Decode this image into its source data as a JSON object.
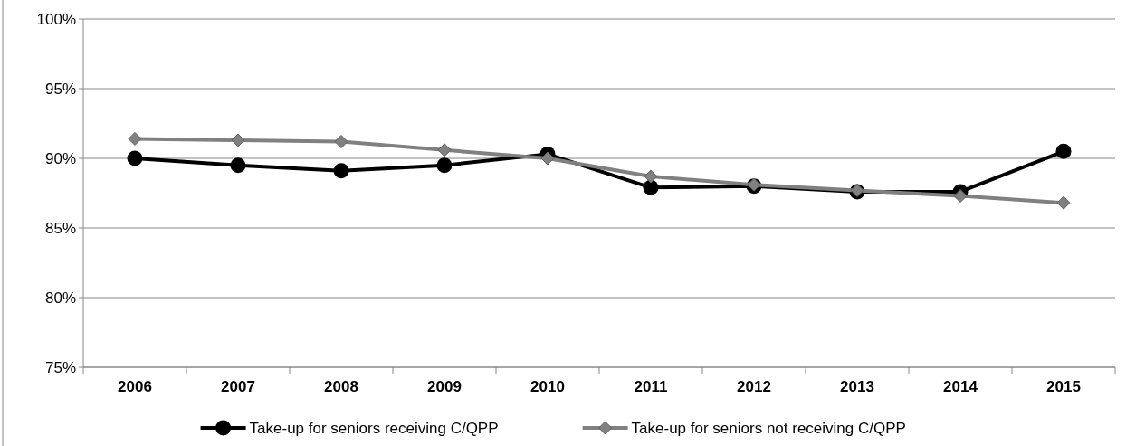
{
  "chart_data": {
    "type": "line",
    "categories": [
      "2006",
      "2007",
      "2008",
      "2009",
      "2010",
      "2011",
      "2012",
      "2013",
      "2014",
      "2015"
    ],
    "series": [
      {
        "name": "Take-up for seniors receiving C/QPP",
        "color": "#000000",
        "marker": "circle",
        "values": [
          90.0,
          89.5,
          89.1,
          89.5,
          90.3,
          87.9,
          88.0,
          87.6,
          87.6,
          90.5
        ]
      },
      {
        "name": "Take-up for seniors not receiving C/QPP",
        "color": "#808080",
        "marker": "diamond",
        "values": [
          91.4,
          91.3,
          91.2,
          90.6,
          90.0,
          88.7,
          88.1,
          87.7,
          87.3,
          86.8
        ]
      }
    ],
    "ylim": [
      75,
      100
    ],
    "yticks": [
      {
        "value": 75,
        "label": "75%"
      },
      {
        "value": 80,
        "label": "80%"
      },
      {
        "value": 85,
        "label": "85%"
      },
      {
        "value": 90,
        "label": "90%"
      },
      {
        "value": 95,
        "label": "95%"
      },
      {
        "value": 100,
        "label": "100%"
      }
    ],
    "grid": "y",
    "legend": "bottom"
  }
}
